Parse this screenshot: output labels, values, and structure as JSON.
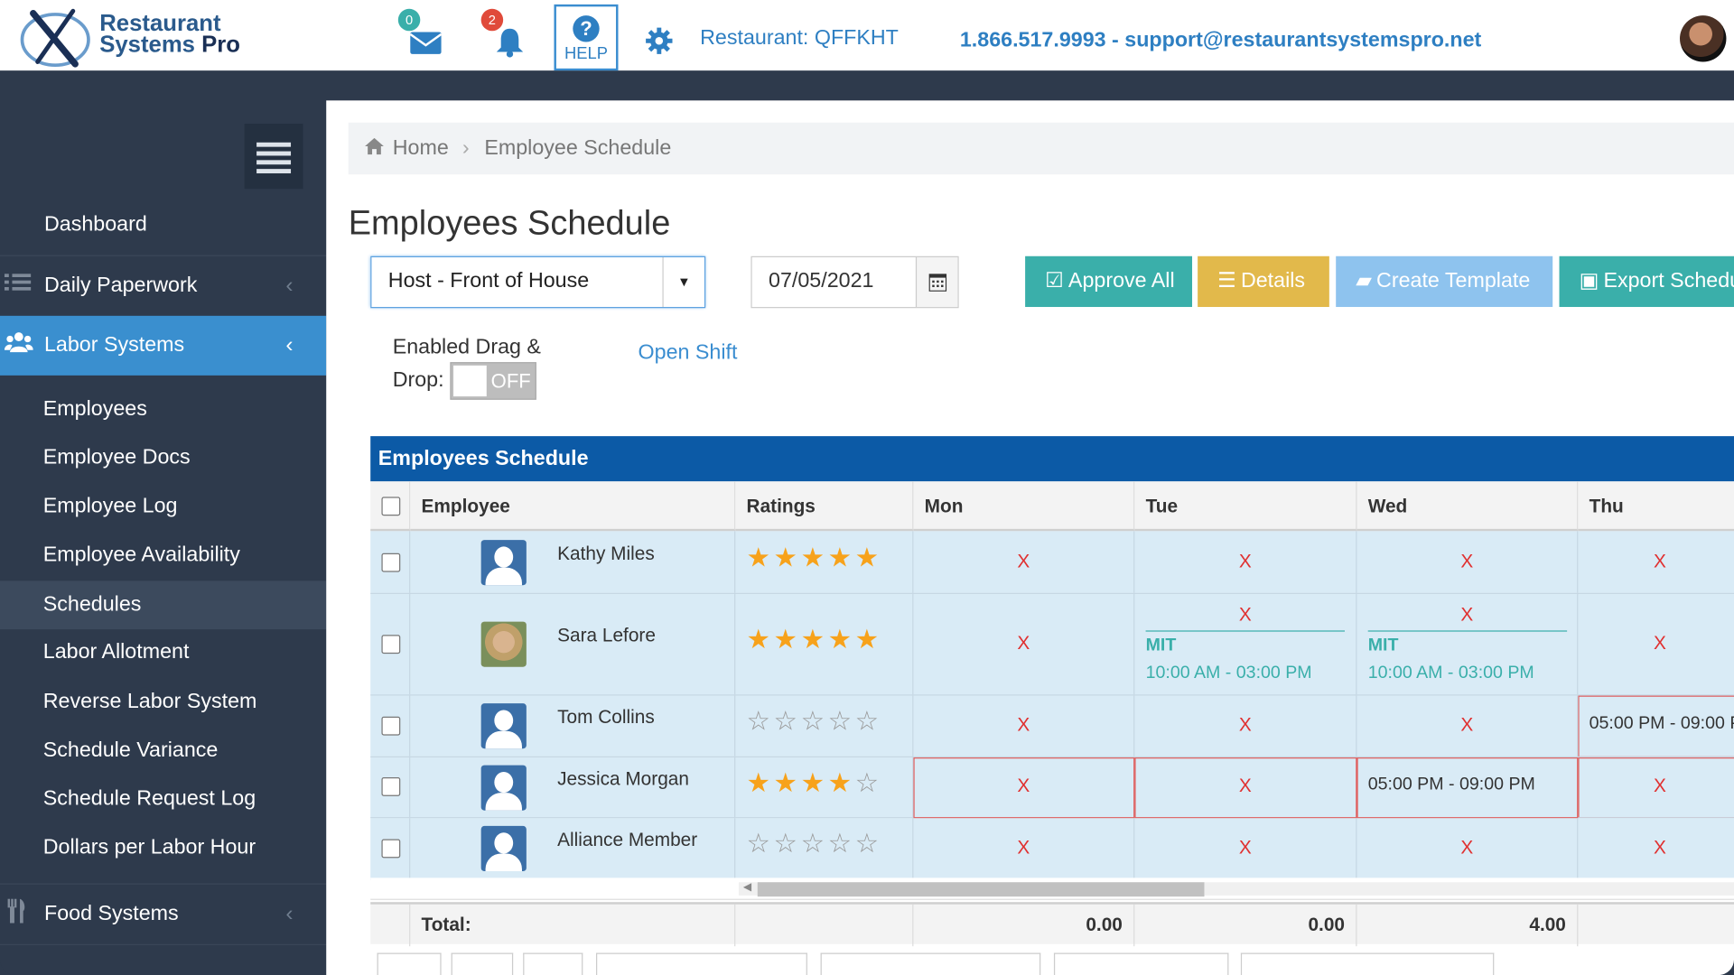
{
  "app": {
    "logo_line1": "Restaurant",
    "logo_line2a": "Systems",
    "logo_line2b": "Pro",
    "messages_count": "0",
    "notifications_count": "2",
    "help_label": "HELP",
    "restaurant": "Restaurant: QFFKHT",
    "support": "1.866.517.9993 - support@restaurantsystemspro.net"
  },
  "sidebar": {
    "dashboard": "Dashboard",
    "daily_paperwork": "Daily Paperwork",
    "labor_systems": "Labor Systems",
    "sub": [
      "Employees",
      "Employee Docs",
      "Employee Log",
      "Employee Availability",
      "Schedules",
      "Labor Allotment",
      "Reverse Labor System",
      "Schedule Variance",
      "Schedule Request Log",
      "Dollars per Labor Hour"
    ],
    "food_systems": "Food Systems"
  },
  "breadcrumb": {
    "home": "Home",
    "current": "Employee Schedule"
  },
  "page_title": "Employees Schedule",
  "filters": {
    "position": "Host - Front of House",
    "date": "07/05/2021"
  },
  "buttons": {
    "approve_all": "Approve All",
    "details": "Details",
    "create_template": "Create Template",
    "export_schedule": "Export Schedu"
  },
  "drag": {
    "label_line1": "Enabled Drag &",
    "label_line2": "Drop:",
    "toggle": "OFF"
  },
  "open_shift": "Open Shift",
  "schedule": {
    "title": "Employees Schedule",
    "columns": [
      "Employee",
      "Ratings",
      "Mon",
      "Tue",
      "Wed",
      "Thu"
    ],
    "mark": "X",
    "rows": [
      {
        "name": "Kathy Miles",
        "rating": 5
      },
      {
        "name": "Sara Lefore",
        "rating": 5,
        "tue_role": "MIT",
        "tue_time": "10:00 AM - 03:00 PM",
        "wed_role": "MIT",
        "wed_time": "10:00 AM - 03:00 PM"
      },
      {
        "name": "Tom Collins",
        "rating": 0,
        "thu_time": "05:00 PM - 09:00 P"
      },
      {
        "name": "Jessica Morgan",
        "rating": 4,
        "wed_time": "05:00 PM - 09:00 PM"
      },
      {
        "name": "Alliance Member",
        "rating": 0
      }
    ],
    "total_label": "Total:",
    "totals": {
      "mon": "0.00",
      "tue": "0.00",
      "wed": "4.00"
    }
  }
}
